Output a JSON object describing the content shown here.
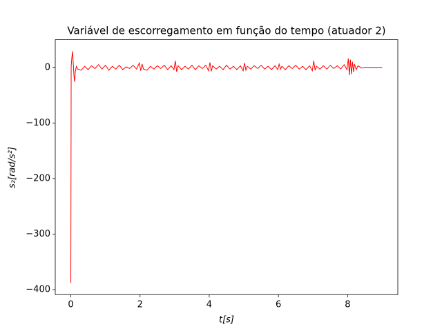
{
  "chart_data": {
    "type": "line",
    "title": "Variável de escorregamento em função do tempo (atuador 2)",
    "x_label": "t[s]",
    "y_label": "s₂[rad/s²]",
    "series": [
      {
        "color": "#ff0000",
        "x": [
          0,
          0.01,
          0.03,
          0.05,
          0.07,
          0.09,
          0.11,
          0.13,
          0.16,
          0.2,
          0.3,
          0.4,
          0.5,
          0.6,
          0.7,
          0.8,
          0.9,
          1.0,
          1.1,
          1.2,
          1.3,
          1.4,
          1.5,
          1.6,
          1.7,
          1.8,
          1.9,
          1.98,
          2.02,
          2.06,
          2.1,
          2.2,
          2.3,
          2.4,
          2.5,
          2.6,
          2.7,
          2.8,
          2.9,
          2.98,
          3.02,
          3.06,
          3.1,
          3.2,
          3.3,
          3.4,
          3.5,
          3.6,
          3.7,
          3.8,
          3.9,
          3.98,
          4.02,
          4.06,
          4.1,
          4.2,
          4.3,
          4.4,
          4.5,
          4.6,
          4.7,
          4.8,
          4.9,
          4.98,
          5.02,
          5.06,
          5.1,
          5.2,
          5.3,
          5.4,
          5.5,
          5.6,
          5.7,
          5.8,
          5.9,
          5.98,
          6.02,
          6.06,
          6.1,
          6.2,
          6.3,
          6.4,
          6.5,
          6.6,
          6.7,
          6.8,
          6.9,
          6.98,
          7.02,
          7.06,
          7.1,
          7.2,
          7.3,
          7.4,
          7.5,
          7.6,
          7.7,
          7.8,
          7.9,
          7.98,
          8.02,
          8.05,
          8.08,
          8.11,
          8.14,
          8.17,
          8.2,
          8.25,
          8.3,
          8.4,
          8.5,
          9.0
        ],
        "values": [
          -388,
          2,
          18,
          29,
          8,
          -14,
          -26,
          -8,
          2,
          -3,
          -5,
          2,
          -4,
          3,
          -2,
          5,
          -3,
          4,
          -5,
          2,
          -3,
          4,
          -4,
          1,
          -2,
          4,
          -3,
          8,
          -6,
          6,
          -3,
          -5,
          2,
          -3,
          3,
          -2,
          4,
          -4,
          3,
          -4,
          12,
          -8,
          3,
          -4,
          2,
          -3,
          4,
          -4,
          3,
          -2,
          4,
          -6,
          9,
          -7,
          3,
          -3,
          2,
          -4,
          4,
          -3,
          2,
          -4,
          3,
          -6,
          8,
          -5,
          2,
          -3,
          3,
          -2,
          4,
          -3,
          2,
          -4,
          3,
          -4,
          6,
          -3,
          2,
          -4,
          3,
          -2,
          4,
          -3,
          2,
          -4,
          3,
          -6,
          12,
          -5,
          2,
          -3,
          3,
          -3,
          4,
          -2,
          3,
          -3,
          5,
          -4,
          16,
          -14,
          14,
          -12,
          10,
          -8,
          6,
          -4,
          3,
          -1,
          0,
          0
        ]
      }
    ],
    "xlim": [
      -0.45,
      9.45
    ],
    "xticks": [
      0,
      2,
      4,
      6,
      8
    ],
    "ylim": [
      -408.85,
      49.85
    ],
    "yticks": [
      {
        "value": -400,
        "label": "−400"
      },
      {
        "value": -300,
        "label": "−300"
      },
      {
        "value": -200,
        "label": "−200"
      },
      {
        "value": -100,
        "label": "−100"
      },
      0
    ],
    "grid": false
  }
}
